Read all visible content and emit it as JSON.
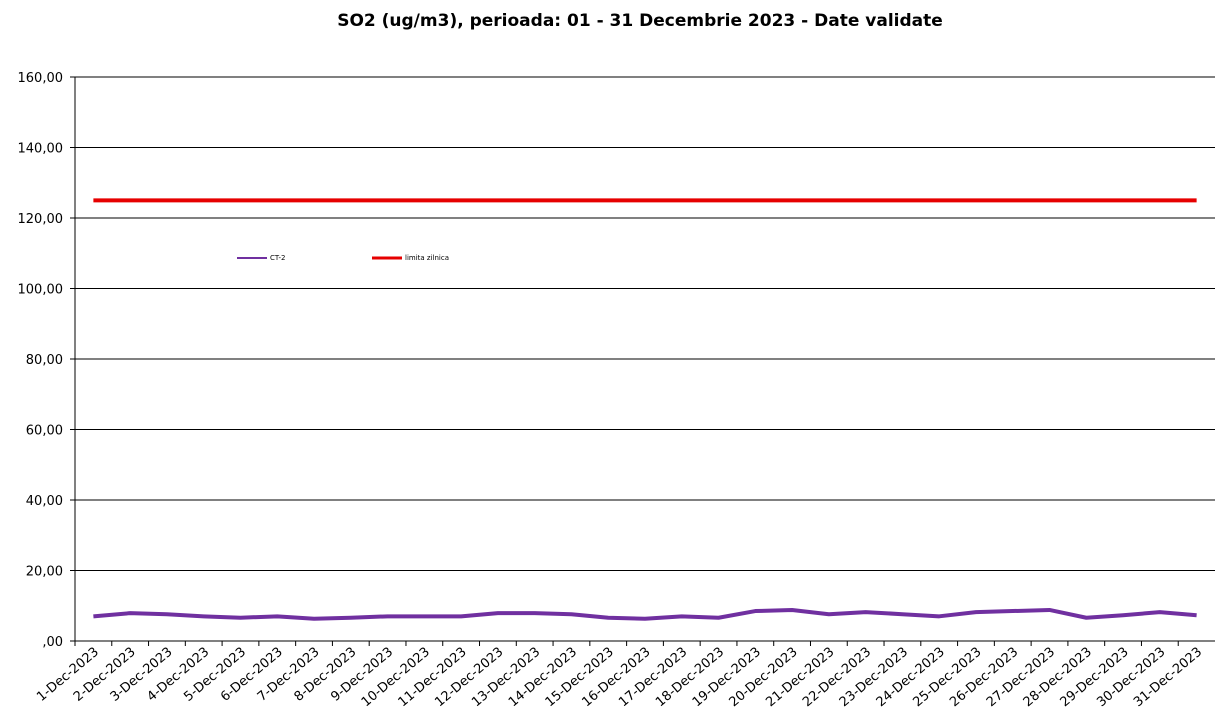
{
  "chart_data": {
    "type": "line",
    "title": "SO2 (ug/m3), perioada: 01 - 31 Decembrie 2023 - Date validate",
    "categories": [
      "1-Dec-2023",
      "2-Dec-2023",
      "3-Dec-2023",
      "4-Dec-2023",
      "5-Dec-2023",
      "6-Dec-2023",
      "7-Dec-2023",
      "8-Dec-2023",
      "9-Dec-2023",
      "10-Dec-2023",
      "11-Dec-2023",
      "12-Dec-2023",
      "13-Dec-2023",
      "14-Dec-2023",
      "15-Dec-2023",
      "16-Dec-2023",
      "17-Dec-2023",
      "18-Dec-2023",
      "19-Dec-2023",
      "20-Dec-2023",
      "21-Dec-2023",
      "22-Dec-2023",
      "23-Dec-2023",
      "24-Dec-2023",
      "25-Dec-2023",
      "26-Dec-2023",
      "27-Dec-2023",
      "28-Dec-2023",
      "29-Dec-2023",
      "30-Dec-2023",
      "31-Dec-2023"
    ],
    "series": [
      {
        "name": "CT-2",
        "color": "#7030a0",
        "values": [
          7.0,
          7.9,
          7.6,
          7.0,
          6.6,
          7.0,
          6.3,
          6.6,
          7.0,
          7.0,
          7.0,
          7.9,
          7.9,
          7.6,
          6.6,
          6.3,
          7.0,
          6.6,
          8.5,
          8.8,
          7.6,
          8.2,
          7.6,
          7.0,
          8.2,
          8.5,
          8.8,
          6.6,
          7.3,
          8.2,
          7.3
        ]
      },
      {
        "name": "limita zilnica",
        "color": "#e60000",
        "values": [
          125,
          125,
          125,
          125,
          125,
          125,
          125,
          125,
          125,
          125,
          125,
          125,
          125,
          125,
          125,
          125,
          125,
          125,
          125,
          125,
          125,
          125,
          125,
          125,
          125,
          125,
          125,
          125,
          125,
          125,
          125
        ]
      }
    ],
    "ylim": [
      0,
      160
    ],
    "yticks": [
      {
        "value": 0,
        "label": ",00"
      },
      {
        "value": 20,
        "label": "20,00"
      },
      {
        "value": 40,
        "label": "40,00"
      },
      {
        "value": 60,
        "label": "60,00"
      },
      {
        "value": 80,
        "label": "80,00"
      },
      {
        "value": 100,
        "label": "100,00"
      },
      {
        "value": 120,
        "label": "120,00"
      },
      {
        "value": 140,
        "label": "140,00"
      },
      {
        "value": 160,
        "label": "160,00"
      }
    ],
    "grid": true
  }
}
